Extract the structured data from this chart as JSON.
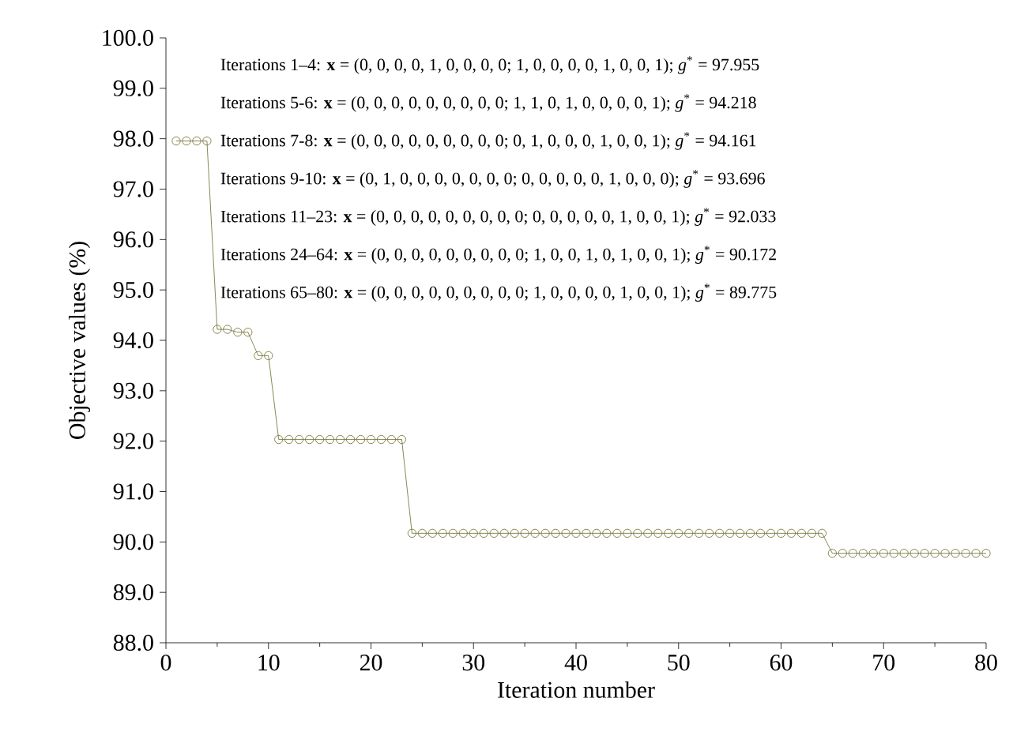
{
  "chart_data": {
    "type": "line",
    "xlabel": "Iteration number",
    "ylabel": "Objective values (%)",
    "x": [
      1,
      2,
      3,
      4,
      5,
      6,
      7,
      8,
      9,
      10,
      11,
      12,
      13,
      14,
      15,
      16,
      17,
      18,
      19,
      20,
      21,
      22,
      23,
      24,
      25,
      26,
      27,
      28,
      29,
      30,
      31,
      32,
      33,
      34,
      35,
      36,
      37,
      38,
      39,
      40,
      41,
      42,
      43,
      44,
      45,
      46,
      47,
      48,
      49,
      50,
      51,
      52,
      53,
      54,
      55,
      56,
      57,
      58,
      59,
      60,
      61,
      62,
      63,
      64,
      65,
      66,
      67,
      68,
      69,
      70,
      71,
      72,
      73,
      74,
      75,
      76,
      77,
      78,
      79,
      80
    ],
    "series": [
      {
        "color": "#6b6b2b",
        "values": [
          97.955,
          97.955,
          97.955,
          97.955,
          94.218,
          94.218,
          94.161,
          94.161,
          93.696,
          93.696,
          92.033,
          92.033,
          92.033,
          92.033,
          92.033,
          92.033,
          92.033,
          92.033,
          92.033,
          92.033,
          92.033,
          92.033,
          92.033,
          90.172,
          90.172,
          90.172,
          90.172,
          90.172,
          90.172,
          90.172,
          90.172,
          90.172,
          90.172,
          90.172,
          90.172,
          90.172,
          90.172,
          90.172,
          90.172,
          90.172,
          90.172,
          90.172,
          90.172,
          90.172,
          90.172,
          90.172,
          90.172,
          90.172,
          90.172,
          90.172,
          90.172,
          90.172,
          90.172,
          90.172,
          90.172,
          90.172,
          90.172,
          90.172,
          90.172,
          90.172,
          90.172,
          90.172,
          90.172,
          90.172,
          89.775,
          89.775,
          89.775,
          89.775,
          89.775,
          89.775,
          89.775,
          89.775,
          89.775,
          89.775,
          89.775,
          89.775,
          89.775,
          89.775,
          89.775,
          89.775
        ]
      }
    ],
    "marker": "circle",
    "line_style": "solid",
    "xlim": [
      0,
      80
    ],
    "xticks": [
      0,
      10,
      20,
      30,
      40,
      50,
      60,
      70,
      80
    ],
    "ylim": [
      88,
      100
    ],
    "yticks": [
      {
        "value": 88,
        "label": "88.0"
      },
      {
        "value": 89,
        "label": "89.0"
      },
      {
        "value": 90,
        "label": "90.0"
      },
      {
        "value": 91,
        "label": "91.0"
      },
      {
        "value": 92,
        "label": "92.0"
      },
      {
        "value": 93,
        "label": "93.0"
      },
      {
        "value": 94,
        "label": "94.0"
      },
      {
        "value": 95,
        "label": "95.0"
      },
      {
        "value": 96,
        "label": "96.0"
      },
      {
        "value": 97,
        "label": "97.0"
      },
      {
        "value": 98,
        "label": "98.0"
      },
      {
        "value": 99,
        "label": "99.0"
      },
      {
        "value": 100,
        "label": "100.0"
      }
    ],
    "annotations": [
      "Iterations 1–4: **x** = (0, 0, 0, 0, 1, 0, 0, 0, 0; 1, 0, 0, 0, 0, 1, 0, 0, 1); *g*$^{*}$ = 97.955",
      "Iterations 5-6: **x** = (0, 0, 0, 0, 0, 0, 0, 0, 0; 1, 1, 0, 1, 0, 0, 0, 0, 1); *g*$^{*}$ = 94.218",
      "Iterations 7-8: **x** = (0, 0, 0, 0, 0, 0, 0, 0, 0; 0, 1, 0, 0, 0, 1, 0, 0, 1); *g*$^{*}$ = 94.161",
      "Iterations 9-10: **x** = (0, 1, 0, 0, 0, 0, 0, 0, 0; 0, 0, 0, 0, 0, 1, 0, 0, 0); *g*$^{*}$ = 93.696",
      "Iterations 11–23: **x** = (0, 0, 0, 0, 0, 0, 0, 0, 0; 0, 0, 0, 0, 0, 1, 0, 0, 1); *g*$^{*}$ = 92.033",
      "Iterations 24–64: **x** = (0, 0, 0, 0, 0, 0, 0, 0, 0; 1, 0, 0, 1, 0, 1, 0, 0, 1); *g*$^{*}$ = 90.172",
      "Iterations 65–80: **x** = (0, 0, 0, 0, 0, 0, 0, 0, 0; 1, 0, 0, 0, 0, 1, 0, 0, 1); *g*$^{*}$ = 89.775"
    ]
  }
}
